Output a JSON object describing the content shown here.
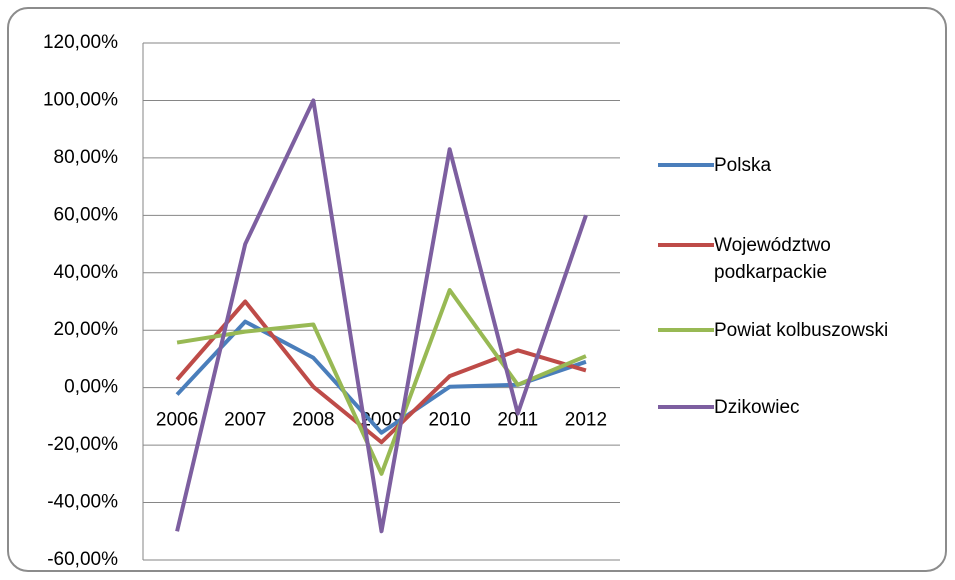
{
  "chart_data": {
    "type": "line",
    "categories": [
      "2006",
      "2007",
      "2008",
      "2009",
      "2010",
      "2011",
      "2012"
    ],
    "series": [
      {
        "name": "Polska",
        "color": "#4a7ebb",
        "values": [
          -2.4,
          23,
          10.4,
          -15.7,
          0.3,
          1,
          9
        ]
      },
      {
        "name": "Województwo podkarpackie",
        "color": "#be4b48",
        "values": [
          2.8,
          30,
          0.3,
          -19,
          4,
          13,
          6
        ]
      },
      {
        "name": "Powiat kolbuszowski",
        "color": "#98b954",
        "values": [
          15.7,
          19.5,
          22,
          -30,
          34,
          1,
          11
        ]
      },
      {
        "name": "Dzikowiec",
        "color": "#7d5fa0",
        "values": [
          -50,
          50,
          100,
          -50,
          83,
          -9,
          60
        ]
      }
    ],
    "ylim": [
      -60,
      120
    ],
    "yticks": [
      {
        "value": -60,
        "label": "-60,00%"
      },
      {
        "value": -40,
        "label": "-40,00%"
      },
      {
        "value": -20,
        "label": "-20,00%"
      },
      {
        "value": 0,
        "label": "0,00%"
      },
      {
        "value": 20,
        "label": "20,00%"
      },
      {
        "value": 40,
        "label": "40,00%"
      },
      {
        "value": 60,
        "label": "60,00%"
      },
      {
        "value": 80,
        "label": "80,00%"
      },
      {
        "value": 100,
        "label": "100,00%"
      },
      {
        "value": 120,
        "label": "120,00%"
      }
    ],
    "grid": true,
    "legend": "right"
  }
}
